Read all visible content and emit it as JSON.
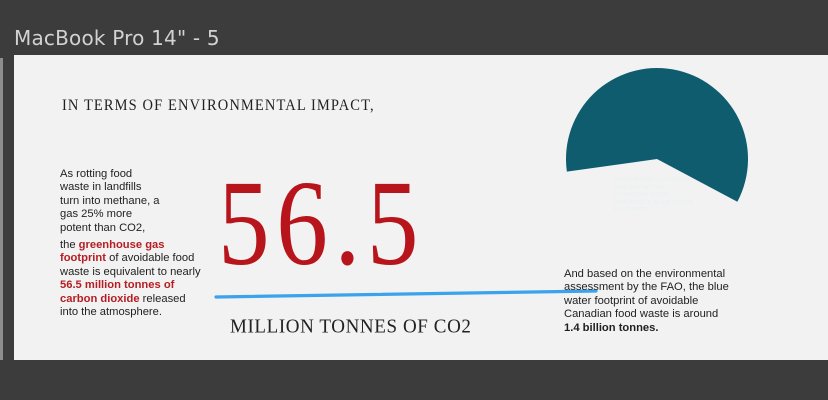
{
  "frame": {
    "title": "MacBook Pro 14\" - 5"
  },
  "content": {
    "heading": "IN TERMS OF ENVIRONMENTAL IMPACT,",
    "body_lines": [
      "As rotting food",
      "waste in landfills",
      "turn into methane, a",
      "gas 25% more",
      "potent than CO2,"
    ],
    "body2": {
      "line1_pre": "the ",
      "line1_red": "greenhouse gas",
      "line2_red": "footprint",
      "line2_post": " of avoidable food",
      "line3": "waste is equivalent to nearly",
      "line4_red": "56.5 million tonnes of",
      "line5_red": "carbon dioxide",
      "line5_post": " released",
      "line6": "into the atmosphere."
    },
    "big_number": "56.5",
    "unit_label": "MILLION TONNES OF CO2",
    "pie": {
      "value_percent": 60,
      "color": "#0e5c6e",
      "caption_lines": [
        "FOOD WASTE ACCOUNTS",
        "FOR 60% OF THE",
        "CANADIAN FOOD",
        "INDUSTRY'S BLUE WATER",
        "FOOTPRINT"
      ]
    },
    "right_text": {
      "lines": [
        "And based on the environmental",
        "assessment by the FAO, the blue",
        "water footprint of avoidable",
        "Canadian food waste is around"
      ],
      "bold": "1.4 billion tonnes."
    },
    "colors": {
      "background": "#3c3c3c",
      "artboard": "#f2f2f2",
      "accent_red": "#b8141c",
      "underline_blue": "#3aa3ec"
    }
  }
}
